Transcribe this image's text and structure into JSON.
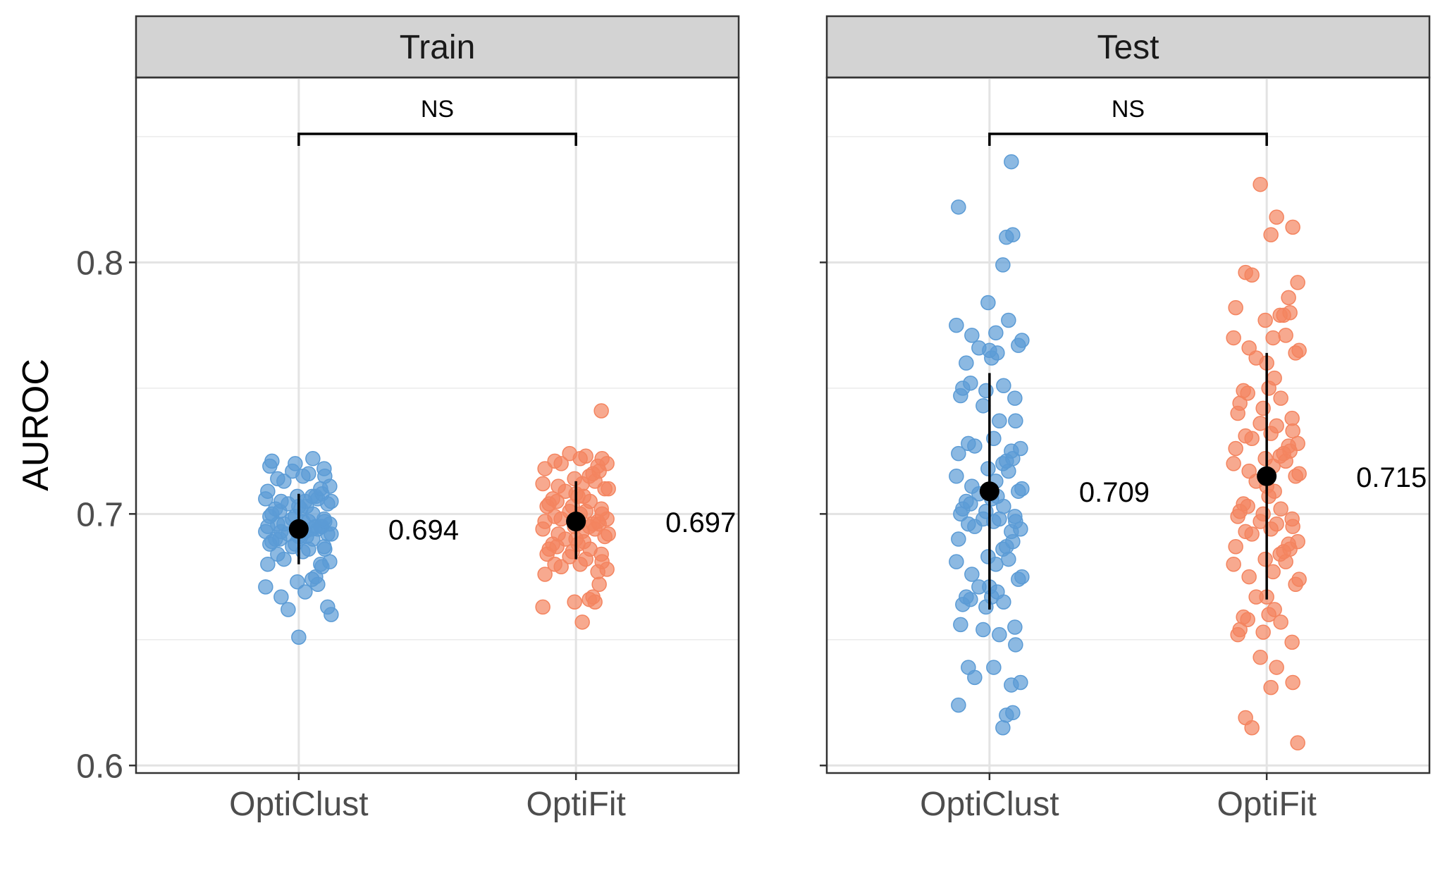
{
  "chart_data": {
    "type": "scatter",
    "ylabel": "AUROC",
    "xlabel": "",
    "ylim": [
      0.597,
      0.8735
    ],
    "y_ticks": [
      "0.6",
      "0.7",
      "0.8"
    ],
    "y_tick_values": [
      0.6,
      0.7,
      0.8
    ],
    "categories": [
      "OptiClust",
      "OptiFit"
    ],
    "grid": true,
    "colors": {
      "OptiClust": "#5b9bd5",
      "OptiFit": "#f4845f",
      "summary": "#000000",
      "strip": "#d3d3d3"
    },
    "panels": [
      {
        "title": "Train",
        "significance": "NS",
        "summaries": [
          {
            "group": "OptiClust",
            "mean": 0.694,
            "low": 0.68,
            "high": 0.708,
            "label": "0.694"
          },
          {
            "group": "OptiFit",
            "mean": 0.697,
            "low": 0.682,
            "high": 0.713,
            "label": "0.697"
          }
        ],
        "points": {
          "OptiClust": [
            0.651,
            0.662,
            0.663,
            0.66,
            0.667,
            0.669,
            0.671,
            0.672,
            0.673,
            0.674,
            0.675,
            0.679,
            0.68,
            0.68,
            0.681,
            0.682,
            0.684,
            0.685,
            0.686,
            0.686,
            0.687,
            0.687,
            0.688,
            0.688,
            0.689,
            0.69,
            0.69,
            0.69,
            0.691,
            0.691,
            0.691,
            0.692,
            0.692,
            0.692,
            0.693,
            0.693,
            0.693,
            0.694,
            0.694,
            0.694,
            0.695,
            0.695,
            0.695,
            0.695,
            0.696,
            0.696,
            0.696,
            0.697,
            0.697,
            0.697,
            0.698,
            0.698,
            0.699,
            0.699,
            0.7,
            0.7,
            0.701,
            0.702,
            0.702,
            0.703,
            0.703,
            0.704,
            0.704,
            0.705,
            0.705,
            0.705,
            0.706,
            0.706,
            0.707,
            0.707,
            0.707,
            0.708,
            0.709,
            0.71,
            0.711,
            0.713,
            0.714,
            0.715,
            0.715,
            0.716,
            0.717,
            0.718,
            0.719,
            0.72,
            0.721,
            0.722
          ],
          "OptiFit": [
            0.657,
            0.663,
            0.665,
            0.665,
            0.666,
            0.667,
            0.672,
            0.676,
            0.677,
            0.678,
            0.679,
            0.68,
            0.68,
            0.681,
            0.682,
            0.683,
            0.684,
            0.684,
            0.685,
            0.686,
            0.686,
            0.687,
            0.688,
            0.688,
            0.689,
            0.69,
            0.69,
            0.691,
            0.692,
            0.692,
            0.693,
            0.694,
            0.694,
            0.695,
            0.695,
            0.696,
            0.696,
            0.697,
            0.697,
            0.698,
            0.698,
            0.699,
            0.7,
            0.7,
            0.701,
            0.701,
            0.702,
            0.703,
            0.703,
            0.704,
            0.705,
            0.705,
            0.706,
            0.707,
            0.707,
            0.708,
            0.709,
            0.71,
            0.71,
            0.711,
            0.712,
            0.712,
            0.713,
            0.714,
            0.715,
            0.716,
            0.717,
            0.718,
            0.719,
            0.72,
            0.72,
            0.721,
            0.722,
            0.722,
            0.723,
            0.724,
            0.741
          ]
        }
      },
      {
        "title": "Test",
        "significance": "NS",
        "summaries": [
          {
            "group": "OptiClust",
            "mean": 0.709,
            "low": 0.662,
            "high": 0.756,
            "label": "0.709"
          },
          {
            "group": "OptiFit",
            "mean": 0.715,
            "low": 0.666,
            "high": 0.764,
            "label": "0.715"
          }
        ],
        "points": {
          "OptiClust": [
            0.615,
            0.62,
            0.621,
            0.624,
            0.632,
            0.633,
            0.635,
            0.639,
            0.639,
            0.648,
            0.652,
            0.654,
            0.655,
            0.656,
            0.663,
            0.664,
            0.665,
            0.666,
            0.667,
            0.667,
            0.669,
            0.671,
            0.671,
            0.674,
            0.675,
            0.676,
            0.68,
            0.681,
            0.682,
            0.683,
            0.686,
            0.687,
            0.689,
            0.69,
            0.693,
            0.694,
            0.695,
            0.696,
            0.697,
            0.697,
            0.698,
            0.698,
            0.699,
            0.7,
            0.701,
            0.702,
            0.703,
            0.704,
            0.705,
            0.706,
            0.707,
            0.708,
            0.708,
            0.709,
            0.71,
            0.711,
            0.713,
            0.715,
            0.717,
            0.718,
            0.72,
            0.721,
            0.722,
            0.724,
            0.725,
            0.726,
            0.727,
            0.728,
            0.73,
            0.737,
            0.737,
            0.743,
            0.746,
            0.747,
            0.749,
            0.75,
            0.751,
            0.752,
            0.76,
            0.762,
            0.764,
            0.765,
            0.766,
            0.767,
            0.769,
            0.771,
            0.772,
            0.775,
            0.777,
            0.784,
            0.799,
            0.81,
            0.811,
            0.822,
            0.84
          ],
          "OptiFit": [
            0.609,
            0.615,
            0.619,
            0.631,
            0.633,
            0.639,
            0.643,
            0.649,
            0.652,
            0.653,
            0.654,
            0.657,
            0.658,
            0.659,
            0.66,
            0.662,
            0.667,
            0.667,
            0.672,
            0.674,
            0.675,
            0.677,
            0.68,
            0.681,
            0.682,
            0.684,
            0.685,
            0.686,
            0.687,
            0.688,
            0.689,
            0.692,
            0.693,
            0.694,
            0.695,
            0.696,
            0.697,
            0.698,
            0.699,
            0.7,
            0.701,
            0.702,
            0.703,
            0.704,
            0.707,
            0.709,
            0.711,
            0.713,
            0.715,
            0.716,
            0.717,
            0.719,
            0.72,
            0.721,
            0.722,
            0.723,
            0.724,
            0.725,
            0.726,
            0.727,
            0.728,
            0.73,
            0.731,
            0.732,
            0.733,
            0.735,
            0.736,
            0.738,
            0.74,
            0.742,
            0.744,
            0.746,
            0.748,
            0.749,
            0.75,
            0.754,
            0.76,
            0.762,
            0.764,
            0.765,
            0.766,
            0.77,
            0.77,
            0.771,
            0.777,
            0.779,
            0.779,
            0.78,
            0.782,
            0.786,
            0.792,
            0.795,
            0.796,
            0.811,
            0.814,
            0.818,
            0.831
          ]
        }
      }
    ]
  }
}
